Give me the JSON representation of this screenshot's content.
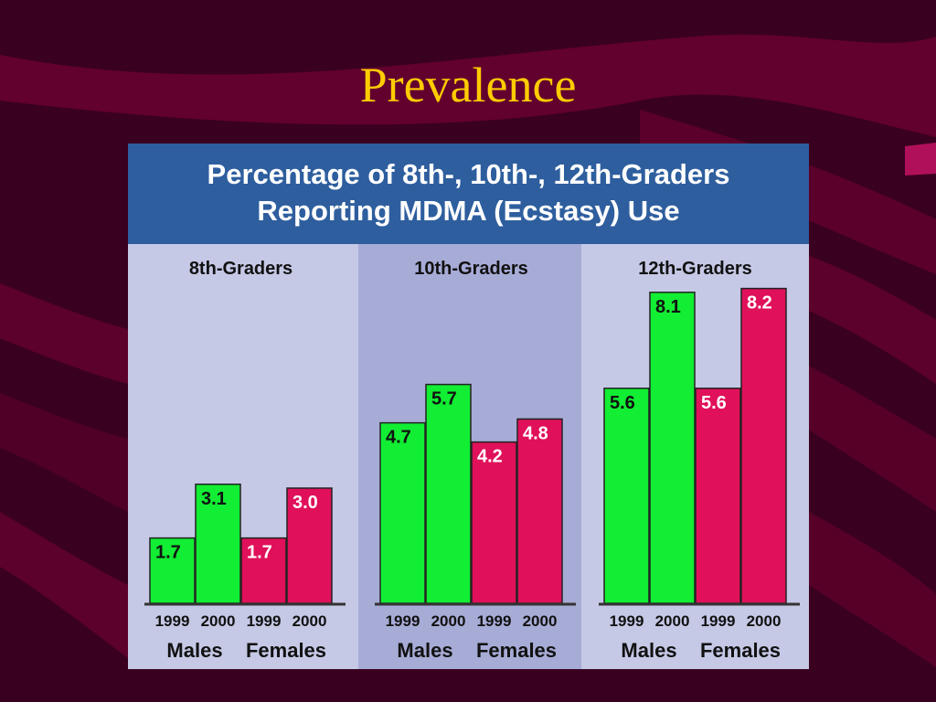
{
  "slide": {
    "title": "Prevalence"
  },
  "colors": {
    "males": "#11ee33",
    "females": "#e0105a",
    "panel": "#c5c9e6",
    "panel_mid": "#a7acd6",
    "header": "#2e5e9e",
    "slide_title": "#ffcc00"
  },
  "chart_data": {
    "type": "bar",
    "title_lines": [
      "Percentage of 8th-, 10th-, 12th-Graders",
      "Reporting MDMA (Ecstasy) Use"
    ],
    "xlabel": "",
    "ylabel": "",
    "ylim": [
      0,
      9
    ],
    "grid": false,
    "groups": [
      {
        "name": "8th-Graders",
        "bars": [
          {
            "sex": "Males",
            "year": "1999",
            "value": 1.7,
            "label": "1.7"
          },
          {
            "sex": "Males",
            "year": "2000",
            "value": 3.1,
            "label": "3.1"
          },
          {
            "sex": "Females",
            "year": "1999",
            "value": 1.7,
            "label": "1.7"
          },
          {
            "sex": "Females",
            "year": "2000",
            "value": 3.0,
            "label": "3.0"
          }
        ]
      },
      {
        "name": "10th-Graders",
        "bars": [
          {
            "sex": "Males",
            "year": "1999",
            "value": 4.7,
            "label": "4.7"
          },
          {
            "sex": "Males",
            "year": "2000",
            "value": 5.7,
            "label": "5.7"
          },
          {
            "sex": "Females",
            "year": "1999",
            "value": 4.2,
            "label": "4.2"
          },
          {
            "sex": "Females",
            "year": "2000",
            "value": 4.8,
            "label": "4.8"
          }
        ]
      },
      {
        "name": "12th-Graders",
        "bars": [
          {
            "sex": "Males",
            "year": "1999",
            "value": 5.6,
            "label": "5.6"
          },
          {
            "sex": "Males",
            "year": "2000",
            "value": 8.1,
            "label": "8.1"
          },
          {
            "sex": "Females",
            "year": "1999",
            "value": 5.6,
            "label": "5.6"
          },
          {
            "sex": "Females",
            "year": "2000",
            "value": 8.2,
            "label": "8.2"
          }
        ]
      }
    ],
    "sexes": [
      "Males",
      "Females"
    ]
  }
}
